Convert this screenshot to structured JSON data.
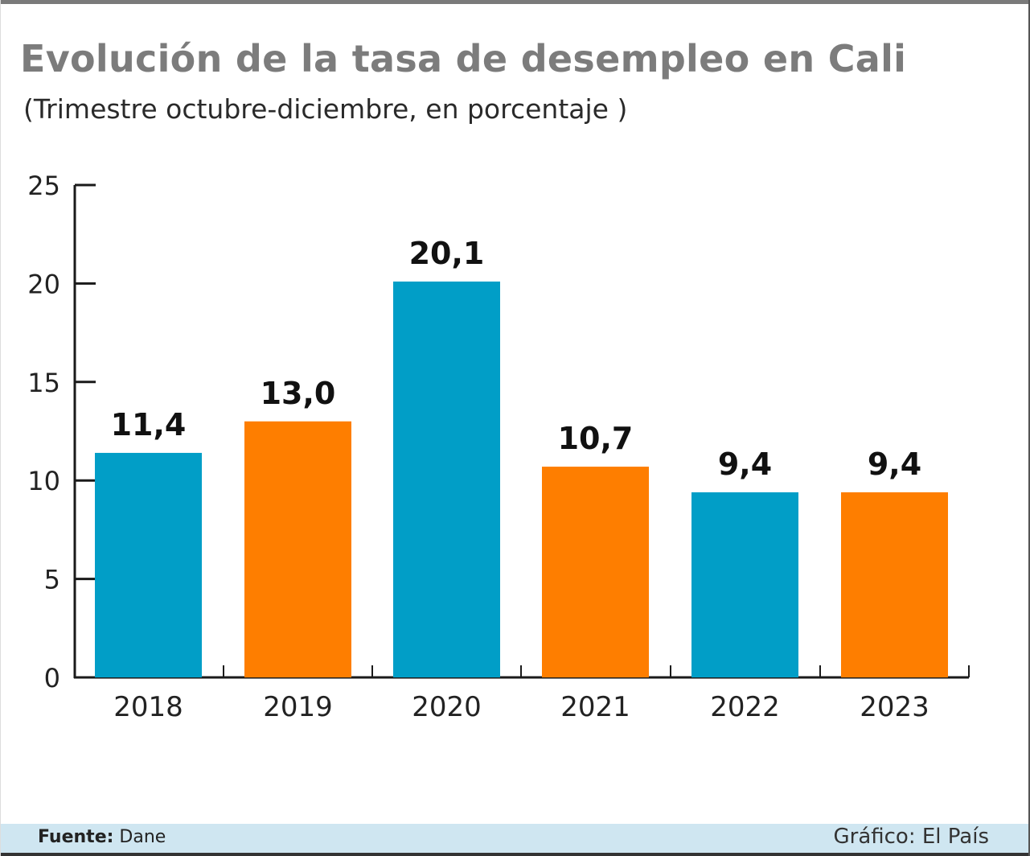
{
  "header": {
    "title": "Evolución de la tasa de desempleo en Cali",
    "subtitle": "(Trimestre octubre-diciembre, en porcentaje )"
  },
  "footer": {
    "source_key": "Fuente:",
    "source_value": "Dane",
    "credit": "Gráfico: El País"
  },
  "chart_data": {
    "type": "bar",
    "title": "Evolución de la tasa de desempleo en Cali",
    "subtitle": "(Trimestre octubre-diciembre, en porcentaje )",
    "categories": [
      "2018",
      "2019",
      "2020",
      "2021",
      "2022",
      "2023"
    ],
    "values": [
      11.4,
      13.0,
      20.1,
      10.7,
      9.4,
      9.4
    ],
    "data_labels": [
      "11,4",
      "13,0",
      "20,1",
      "10,7",
      "9,4",
      "9,4"
    ],
    "bar_colors": [
      "#019ec7",
      "#fe7e00",
      "#019ec7",
      "#fe7e00",
      "#019ec7",
      "#fe7e00"
    ],
    "yticks": [
      0,
      5,
      10,
      15,
      20,
      25
    ],
    "ylim": [
      0,
      25
    ],
    "xlabel": "",
    "ylabel": "",
    "grid": false,
    "legend": "none"
  }
}
